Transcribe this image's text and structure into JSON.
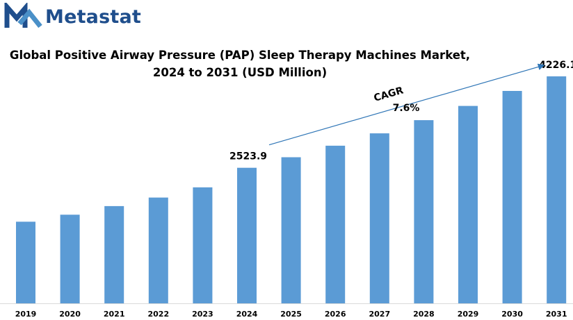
{
  "brand": {
    "name": "Metastat",
    "logo_icon": "metastat-m-logo-icon",
    "color": "#1f4e8c"
  },
  "title_line1": "Global Positive Airway Pressure (PAP) Sleep Therapy Machines  Market,",
  "title_line2": "2024 to 2031 (USD Million)",
  "chart_data": {
    "type": "bar",
    "title": "Global Positive Airway Pressure (PAP) Sleep Therapy Machines  Market, 2024 to 2031 (USD Million)",
    "xlabel": "",
    "ylabel": "",
    "categories": [
      "2019",
      "2020",
      "2021",
      "2022",
      "2023",
      "2024",
      "2025",
      "2026",
      "2027",
      "2028",
      "2029",
      "2030",
      "2031"
    ],
    "values": [
      1520,
      1650,
      1810,
      1970,
      2160,
      2523.9,
      2720,
      2935,
      3165,
      3410,
      3675,
      3955,
      4226.1
    ],
    "data_labels": {
      "5": "2523.9",
      "12": "4226.1"
    },
    "ylim": [
      0,
      4226.1
    ],
    "bar_color": "#5b9bd5",
    "grid": false,
    "legend": "none",
    "annotation": {
      "label": "CAGR",
      "value": "7.6%",
      "from_index": 5,
      "to_index": 12
    }
  }
}
